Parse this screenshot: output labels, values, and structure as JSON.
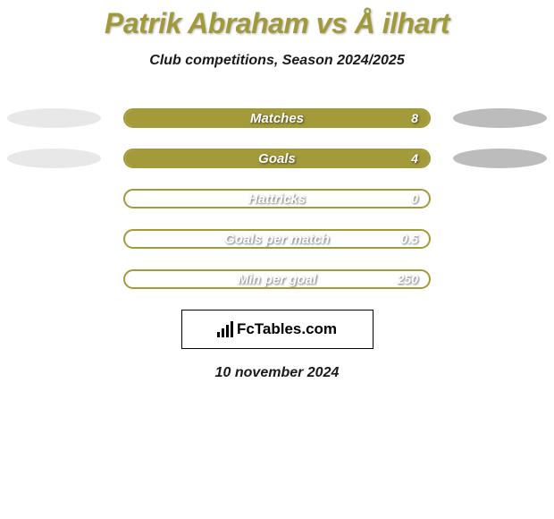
{
  "title": "Patrik Abraham vs Å ilhart",
  "subtitle": "Club competitions, Season 2024/2025",
  "date": "10 november 2024",
  "logo_text": "FcTables.com",
  "colors": {
    "primary": "#a39a3a",
    "ellipse_left": "#e8e8e8",
    "ellipse_right": "#bcbcbc",
    "bar_fill": "#a39a3a",
    "bar_border": "#a39a3a"
  },
  "bars": [
    {
      "label": "Matches",
      "value": "8",
      "fill_pct": 100,
      "show_left_ellipse": true,
      "show_right_ellipse": true,
      "left_ellipse_color": "#e8e8e8",
      "right_ellipse_color": "#bcbcbc"
    },
    {
      "label": "Goals",
      "value": "4",
      "fill_pct": 100,
      "show_left_ellipse": true,
      "show_right_ellipse": true,
      "left_ellipse_color": "#e8e8e8",
      "right_ellipse_color": "#bcbcbc"
    },
    {
      "label": "Hattricks",
      "value": "0",
      "fill_pct": 0,
      "show_left_ellipse": false,
      "show_right_ellipse": false
    },
    {
      "label": "Goals per match",
      "value": "0.5",
      "fill_pct": 0,
      "show_left_ellipse": false,
      "show_right_ellipse": false
    },
    {
      "label": "Min per goal",
      "value": "250",
      "fill_pct": 0,
      "show_left_ellipse": false,
      "show_right_ellipse": false
    }
  ]
}
